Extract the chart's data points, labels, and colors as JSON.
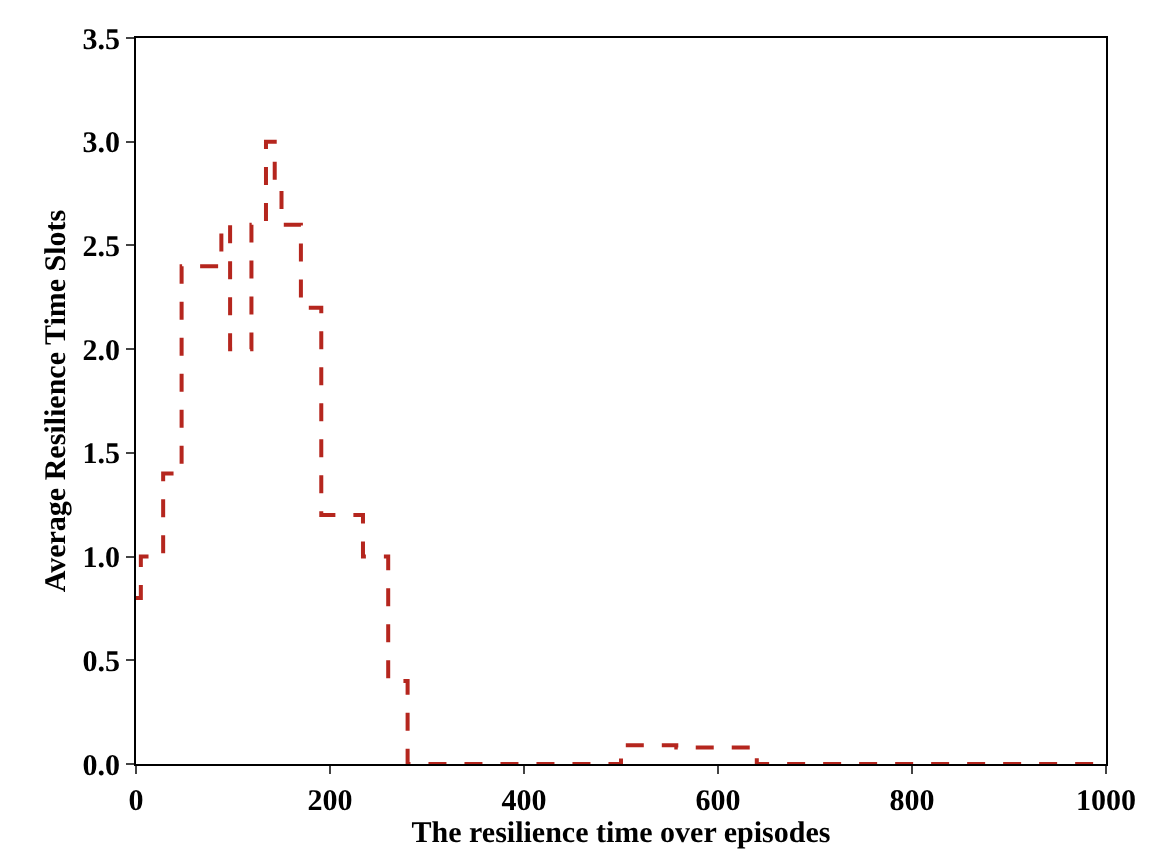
{
  "chart_data": {
    "type": "step",
    "xlabel": "The resilience time over episodes",
    "ylabel": "Average Resilience Time Slots",
    "x": [
      0,
      5,
      28,
      47,
      88,
      97,
      119,
      134,
      143,
      150,
      170,
      191,
      234,
      260,
      280,
      500,
      557,
      640,
      1000
    ],
    "series": [
      {
        "color": "#b5261e",
        "values": [
          0.8,
          1.0,
          1.4,
          2.4,
          2.6,
          2.0,
          2.6,
          3.0,
          2.8,
          2.6,
          2.2,
          1.2,
          1.0,
          0.4,
          0.0,
          0.09,
          0.08,
          0.0,
          0.0
        ]
      }
    ],
    "line_style": "dashed",
    "xlim": [
      0,
      1000
    ],
    "ylim": [
      0,
      3.5
    ],
    "xticks": [
      0,
      200,
      400,
      600,
      800,
      1000
    ],
    "yticks": [
      {
        "value": 0,
        "label": "0.0"
      },
      0.5,
      {
        "value": 1,
        "label": "1.0"
      },
      1.5,
      {
        "value": 2,
        "label": "2.0"
      },
      2.5,
      {
        "value": 3,
        "label": "3.0"
      },
      3.5
    ]
  }
}
